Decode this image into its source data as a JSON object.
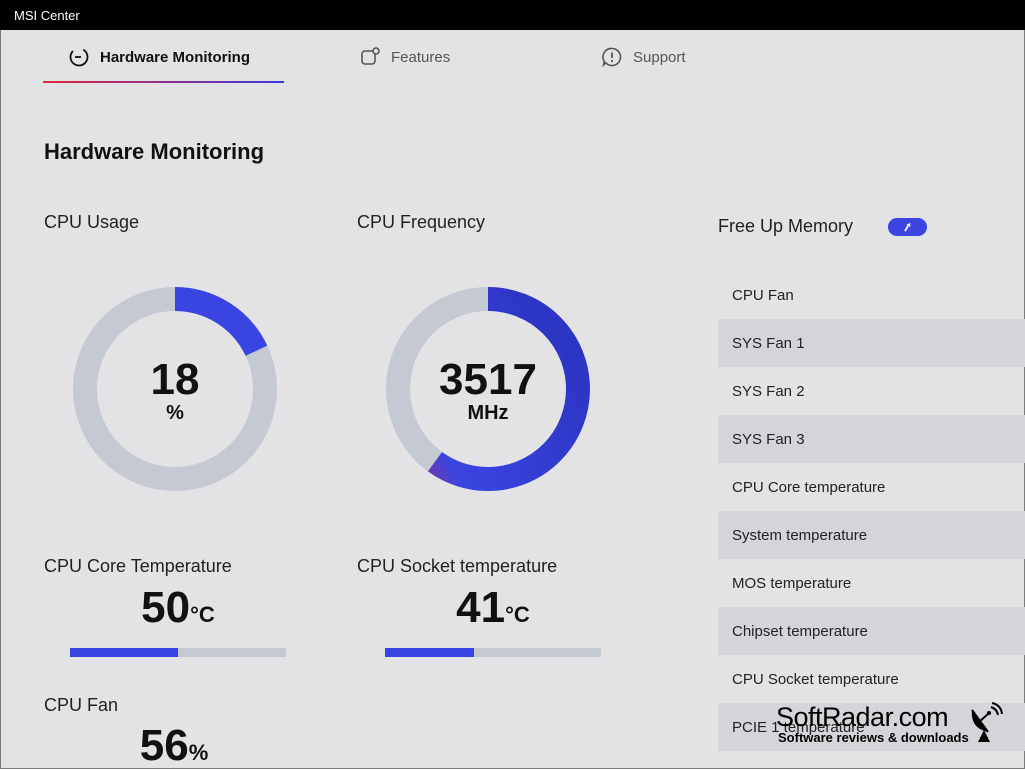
{
  "window": {
    "title": "MSI Center"
  },
  "tabs": [
    {
      "label": "Hardware Monitoring",
      "icon": "gauge-icon",
      "active": true
    },
    {
      "label": "Features",
      "icon": "features-icon",
      "active": false
    },
    {
      "label": "Support",
      "icon": "support-icon",
      "active": false
    }
  ],
  "page": {
    "title": "Hardware Monitoring"
  },
  "cpu_usage": {
    "label": "CPU Usage",
    "value": "18",
    "unit": "%",
    "fraction": 0.18
  },
  "cpu_frequency": {
    "label": "CPU Frequency",
    "value": "3517",
    "unit": "MHz",
    "fraction": 0.6
  },
  "cpu_core_temp": {
    "label": "CPU Core Temperature",
    "value": "50",
    "unit": "°C",
    "fraction": 0.5
  },
  "cpu_socket_temp": {
    "label": "CPU Socket temperature",
    "value": "41",
    "unit": "°C",
    "fraction": 0.41
  },
  "cpu_fan": {
    "label": "CPU Fan",
    "value": "56",
    "unit": "%"
  },
  "free_memory": {
    "label": "Free Up Memory",
    "icon": "boost-arrow-icon"
  },
  "sensors": [
    "CPU Fan",
    "SYS Fan 1",
    "SYS Fan 2",
    "SYS Fan 3",
    "CPU Core temperature",
    "System temperature",
    "MOS temperature",
    "Chipset temperature",
    "CPU Socket temperature",
    "PCIE 1 temperature"
  ],
  "watermark": {
    "main": "SoftRadar.com",
    "sub": "Software reviews & downloads",
    "icon": "radar-dish-icon"
  },
  "colors": {
    "accent": "#3a44e0",
    "accent_magenta": "#a0307a",
    "track": "#c5c9d2",
    "tab_underline_start": "#e0283e"
  }
}
